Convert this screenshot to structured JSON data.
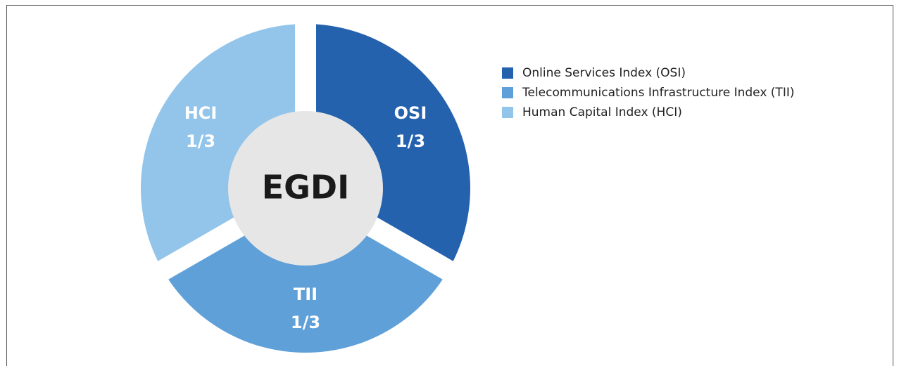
{
  "chart_data": {
    "type": "pie",
    "center_label": "EGDI",
    "categories": [
      "Online Services Index (OSI)",
      "Telecommunications Infrastructure Index (TII)",
      "Human Capital Index (HCI)"
    ],
    "segment_labels": [
      "OSI",
      "TII",
      "HCI"
    ],
    "values": [
      0.3333,
      0.3333,
      0.3333
    ],
    "value_labels": [
      "1/3",
      "1/3",
      "1/3"
    ],
    "colors": [
      "#2462ae",
      "#5fa0d8",
      "#93c5ea"
    ]
  }
}
